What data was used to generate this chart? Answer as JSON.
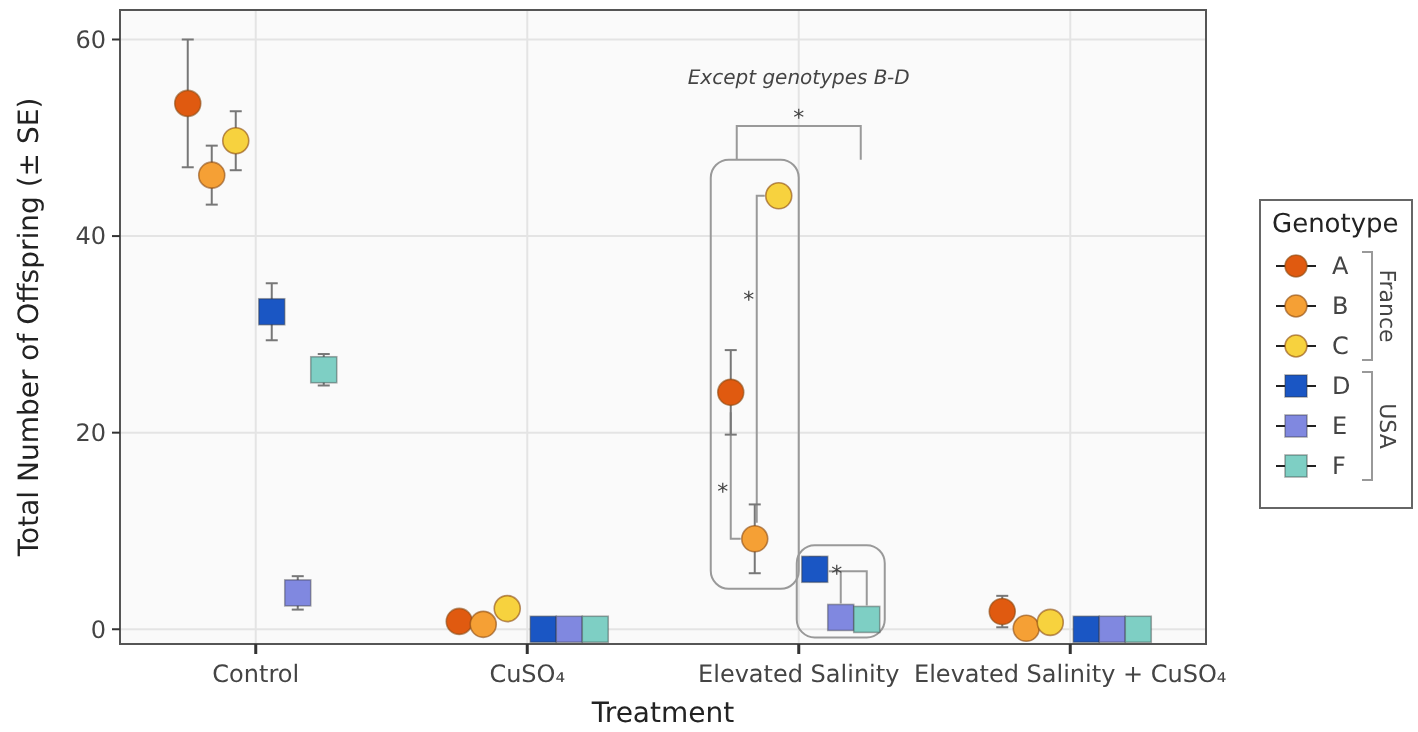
{
  "chart_data": {
    "type": "scatter",
    "xlabel": "Treatment",
    "ylabel": "Total Number of Offspring (± SE)",
    "legend_title": "Genotype",
    "legend": "right",
    "grid": true,
    "categories": [
      "Control",
      "CuSO₄",
      "Elevated Salinity",
      "Elevated Salinity + CuSO₄"
    ],
    "ylim": [
      -1.5,
      63
    ],
    "yticks": [
      0,
      20,
      40,
      60
    ],
    "series": [
      {
        "name": "A",
        "color": "#e05a10",
        "marker": "circle",
        "values": [
          53.5,
          0.8,
          24.1,
          1.8
        ],
        "errors": [
          6.5,
          null,
          4.3,
          1.6
        ]
      },
      {
        "name": "B",
        "color": "#f5a035",
        "marker": "circle",
        "values": [
          46.2,
          0.5,
          9.2,
          0.1
        ],
        "errors": [
          3,
          null,
          3.5,
          null
        ]
      },
      {
        "name": "C",
        "color": "#f7d23e",
        "marker": "circle",
        "values": [
          49.7,
          2.1,
          44.1,
          0.7
        ],
        "errors": [
          3,
          null,
          1.1,
          null
        ]
      },
      {
        "name": "D",
        "color": "#1a56c4",
        "marker": "square",
        "values": [
          32.3,
          0,
          6.1,
          0
        ],
        "errors": [
          2.9,
          null,
          1.2,
          null
        ]
      },
      {
        "name": "E",
        "color": "#8088e0",
        "marker": "square",
        "values": [
          3.7,
          0,
          1.2,
          0
        ],
        "errors": [
          1.7,
          null,
          null,
          null
        ]
      },
      {
        "name": "F",
        "color": "#7ecfc4",
        "marker": "square",
        "values": [
          26.4,
          0,
          1,
          0
        ],
        "errors": [
          1.6,
          null,
          null,
          null
        ]
      }
    ],
    "annotations": [
      "Except genotypes B-D",
      "*",
      "*",
      "*",
      "*",
      "France",
      "USA"
    ]
  }
}
